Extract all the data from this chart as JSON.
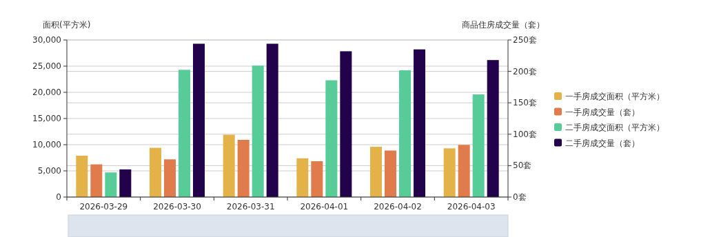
{
  "chart_data": {
    "type": "bar",
    "ylabel": "面积(平方米)",
    "y2label": "商品住房成交量（套）",
    "categories": [
      "2026-03-29",
      "2026-03-30",
      "2026-03-31",
      "2026-04-01",
      "2026-04-02",
      "2026-04-03"
    ],
    "series": [
      {
        "name": "一手房成交面积（平方米）",
        "color": "#e3b34a",
        "values": [
          7900,
          9400,
          11900,
          7400,
          9600,
          9300
        ]
      },
      {
        "name": "一手房成交量（套）",
        "color": "#e07b4b",
        "axis": "y2",
        "values": [
          52,
          60,
          91,
          57,
          74,
          83
        ]
      },
      {
        "name": "二手房成交面积（平方米）",
        "color": "#57cc99",
        "values": [
          4700,
          24300,
          25100,
          22300,
          24200,
          19600
        ]
      },
      {
        "name": "二手房成交量（套）",
        "color": "#22024a",
        "axis": "y2",
        "values": [
          44,
          244,
          244,
          232,
          235,
          218
        ]
      }
    ],
    "ylim": [
      0,
      30000
    ],
    "yticks": [
      {
        "value": 0,
        "label": "0"
      },
      {
        "value": 5000,
        "label": "5,000"
      },
      {
        "value": 10000,
        "label": "10,000"
      },
      {
        "value": 15000,
        "label": "15,000"
      },
      {
        "value": 20000,
        "label": "20,000"
      },
      {
        "value": 25000,
        "label": "25,000"
      },
      {
        "value": 30000,
        "label": "30,000"
      }
    ],
    "y2lim": [
      0,
      250
    ],
    "y2ticks": [
      {
        "value": 0,
        "label": "0套"
      },
      {
        "value": 50,
        "label": "50套"
      },
      {
        "value": 100,
        "label": "100套"
      },
      {
        "value": 150,
        "label": "150套"
      },
      {
        "value": 200,
        "label": "200套"
      },
      {
        "value": 250,
        "label": "250套"
      }
    ],
    "grid": true,
    "legend": "right"
  }
}
